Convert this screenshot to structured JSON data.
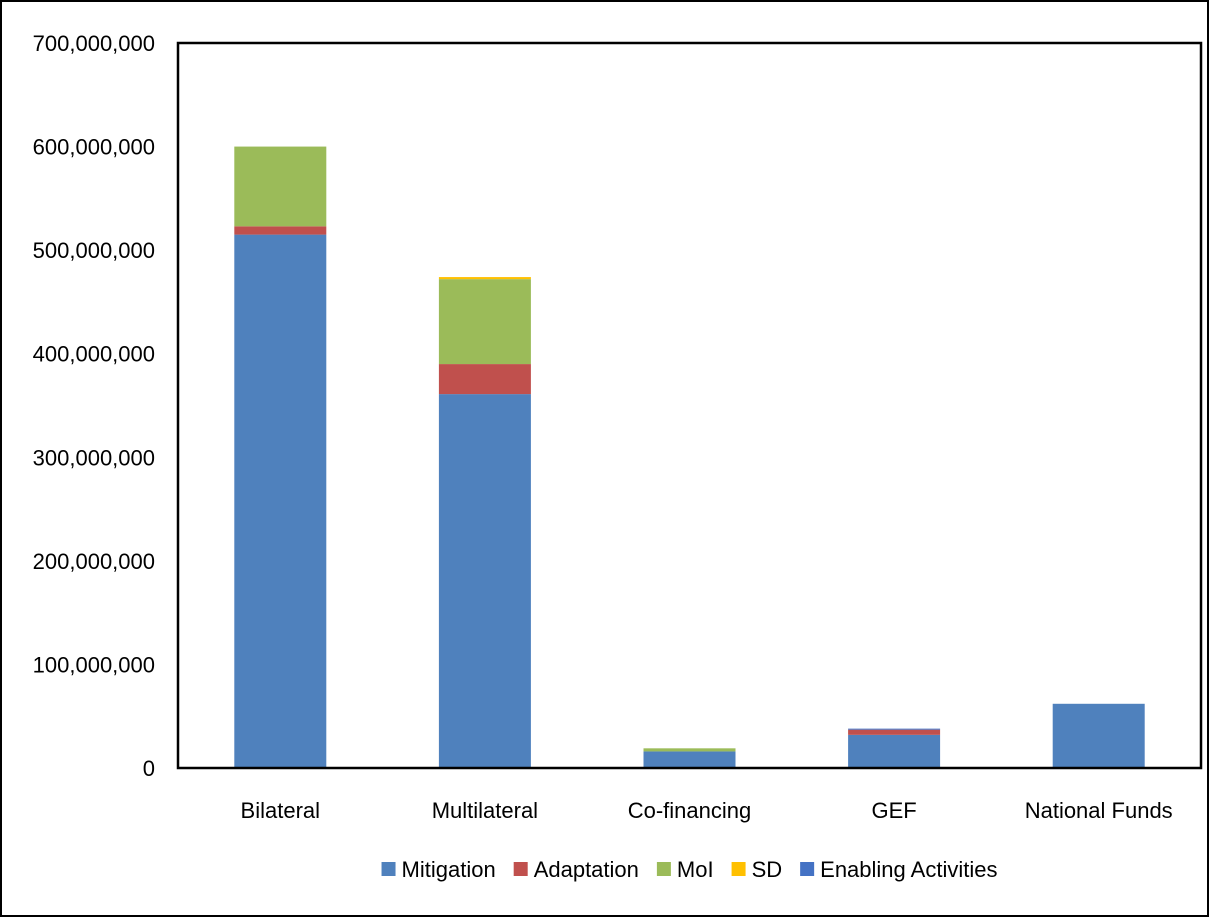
{
  "chart_data": {
    "type": "bar",
    "stacked": true,
    "categories": [
      "Bilateral",
      "Multilateral",
      "Co-financing",
      "GEF",
      "National Funds"
    ],
    "series": [
      {
        "name": "Mitigation",
        "color": "#4f81bd",
        "values": [
          515000000,
          361000000,
          16000000,
          32000000,
          62000000
        ]
      },
      {
        "name": "Adaptation",
        "color": "#c0504d",
        "values": [
          8000000,
          29000000,
          0,
          5000000,
          0
        ]
      },
      {
        "name": "MoI",
        "color": "#9bbb59",
        "values": [
          77000000,
          82000000,
          3000000,
          0,
          0
        ]
      },
      {
        "name": "SD",
        "color": "#ffc000",
        "values": [
          0,
          2000000,
          0,
          0,
          0
        ]
      },
      {
        "name": "Enabling Activities",
        "color": "#4472c4",
        "values": [
          0,
          0,
          0,
          1000000,
          0
        ]
      }
    ],
    "ylim": [
      0,
      700000000
    ],
    "yticks": [
      0,
      100000000,
      200000000,
      300000000,
      400000000,
      500000000,
      600000000,
      700000000
    ],
    "ytick_labels": [
      "0",
      "100,000,000",
      "200,000,000",
      "300,000,000",
      "400,000,000",
      "500,000,000",
      "600,000,000",
      "700,000,000"
    ],
    "grid": false,
    "legend_position": "bottom",
    "title": "",
    "xlabel": "",
    "ylabel": ""
  }
}
